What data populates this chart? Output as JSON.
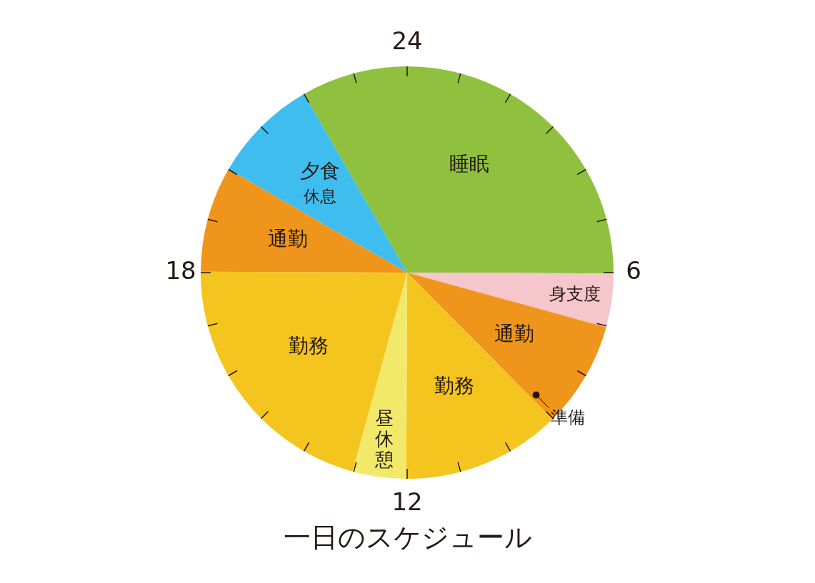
{
  "chart_data": {
    "type": "pie",
    "title": "一日のスケジュール",
    "categories": [
      "睡眠",
      "身支度",
      "通勤",
      "勤務",
      "昼休憩",
      "勤務",
      "通勤",
      "夕食休息"
    ],
    "values": [
      33.4,
      4.2,
      8.3,
      12.5,
      4.2,
      20.8,
      8.3,
      8.3
    ],
    "colors": [
      "#8fc13e",
      "#f5c6cb",
      "#f0951c",
      "#f4c51f",
      "#f2e96a",
      "#f4c51f",
      "#f0951c",
      "#3fbdee"
    ],
    "annotations": [
      "24",
      "6",
      "12",
      "18",
      "準備"
    ],
    "legend": false
  }
}
